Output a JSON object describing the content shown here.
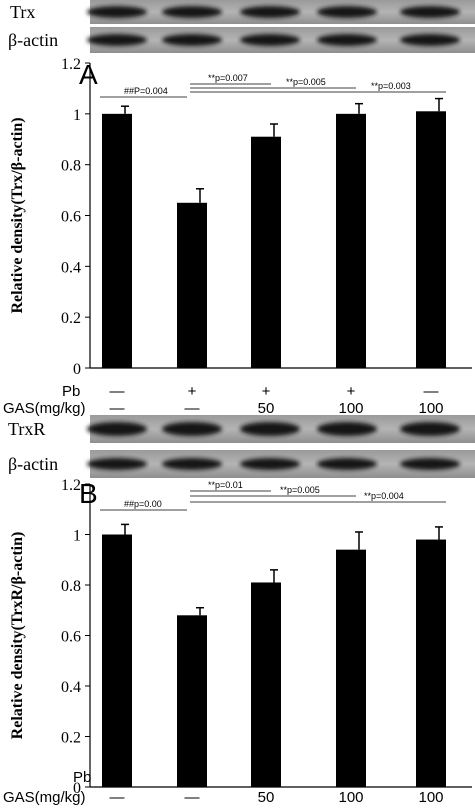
{
  "chart_data": [
    {
      "type": "bar",
      "panel_label": "A",
      "blots": [
        "Trx",
        "β-actin"
      ],
      "ylabel": "Relative density(Trx/β-actin)",
      "ylim": [
        0,
        1.2
      ],
      "yticks": [
        "0",
        "0.2",
        "0.4",
        "0.6",
        "0.8",
        "1",
        "1.2"
      ],
      "values": [
        1.0,
        0.65,
        0.91,
        1.0,
        1.01
      ],
      "errors": [
        0.03,
        0.055,
        0.05,
        0.04,
        0.05
      ],
      "significance": [
        {
          "label": "##P=0.004",
          "from": 0,
          "to": 1
        },
        {
          "label": "**p=0.007",
          "from": 1,
          "to": 2
        },
        {
          "label": "**p=0.005",
          "from": 1,
          "to": 3
        },
        {
          "label": "**p=0.003",
          "from": 1,
          "to": 4
        }
      ],
      "conditions": {
        "pb_label": "Pb",
        "gas_label": "GAS(mg/kg)",
        "pb": [
          "—",
          "+",
          "+",
          "+",
          "—"
        ],
        "gas": [
          "—",
          "—",
          "50",
          "100",
          "100"
        ]
      }
    },
    {
      "type": "bar",
      "panel_label": "B",
      "blots": [
        "TrxR",
        "β-actin"
      ],
      "ylabel": "Relative density(TrxR/β-actin)",
      "ylim": [
        0,
        1.2
      ],
      "yticks": [
        "0",
        "0.2",
        "0.4",
        "0.6",
        "0.8",
        "1",
        "1.2"
      ],
      "values": [
        1.0,
        0.68,
        0.81,
        0.94,
        0.98
      ],
      "errors": [
        0.04,
        0.03,
        0.05,
        0.07,
        0.05
      ],
      "significance": [
        {
          "label": "##p=0.00",
          "from": 0,
          "to": 1
        },
        {
          "label": "**p=0.01",
          "from": 1,
          "to": 2
        },
        {
          "label": "**p=0.005",
          "from": 1,
          "to": 3
        },
        {
          "label": "**p=0.004",
          "from": 1,
          "to": 4
        }
      ],
      "conditions": {
        "pb_label": "Pb",
        "gas_label": "GAS(mg/kg)",
        "pb": [
          "—",
          "+",
          "+",
          "+",
          "—"
        ],
        "gas": [
          "—",
          "—",
          "50",
          "100",
          "100"
        ]
      }
    }
  ]
}
